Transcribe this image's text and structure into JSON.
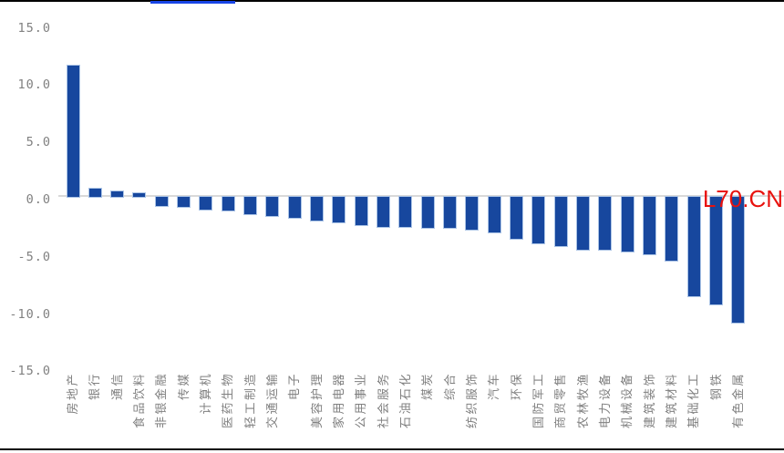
{
  "chart_data": {
    "type": "bar",
    "title": "",
    "xlabel": "",
    "ylabel": "",
    "categories": [
      "房地产",
      "银行",
      "通信",
      "食品饮料",
      "非银金融",
      "传媒",
      "计算机",
      "医药生物",
      "轻工制造",
      "交通运输",
      "电子",
      "美容护理",
      "家用电器",
      "公用事业",
      "社会服务",
      "石油石化",
      "煤炭",
      "综合",
      "纺织服饰",
      "汽车",
      "环保",
      "国防军工",
      "商贸零售",
      "农林牧渔",
      "电力设备",
      "机械设备",
      "建筑装饰",
      "建筑材料",
      "基础化工",
      "钢铁",
      "有色金属"
    ],
    "values": [
      11.5,
      0.7,
      0.5,
      0.3,
      -0.8,
      -0.9,
      -1.1,
      -1.2,
      -1.5,
      -1.7,
      -1.8,
      -2.1,
      -2.2,
      -2.5,
      -2.6,
      -2.6,
      -2.7,
      -2.7,
      -2.9,
      -3.1,
      -3.7,
      -4.1,
      -4.3,
      -4.6,
      -4.6,
      -4.8,
      -5.0,
      -5.6,
      -8.7,
      -9.4,
      -11.0
    ],
    "ylim": [
      -15,
      15
    ],
    "ytick_labels": [
      "15.0",
      "10.0",
      "5.0",
      "0.0",
      "-5.0",
      "-10.0",
      "-15.0"
    ],
    "ytick_values": [
      15,
      10,
      5,
      0,
      -5,
      -10,
      -15
    ],
    "grid": "zero-line-only",
    "legend_position": "none",
    "bar_color": "#17479e",
    "bar_edge_color": "#abc4e6",
    "gridline_color": "#d9d9d9",
    "axis_text_color": "#808080"
  },
  "watermark": {
    "text": "L70.CN",
    "color": "#e8120e"
  },
  "decorations": {
    "top_border_color": "#000000",
    "bottom_border_color": "#000000",
    "link_underline_color": "#1845e6"
  }
}
